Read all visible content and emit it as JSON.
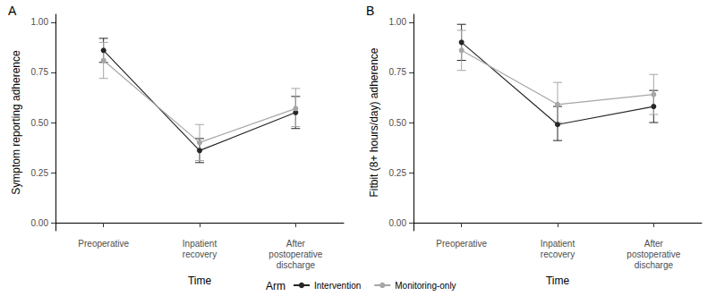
{
  "chart_data": [
    {
      "type": "line",
      "title": "A",
      "x_label": "Time",
      "y_label": "Symptom reporting adherence",
      "categories": [
        "Preoperative",
        "Inpatient\nrecovery",
        "After\npostoperative\ndischarge"
      ],
      "series": [
        {
          "name": "Intervention",
          "color": "#262626",
          "marker": "circle",
          "values": [
            0.86,
            0.36,
            0.55
          ],
          "lower": [
            0.8,
            0.3,
            0.47
          ],
          "upper": [
            0.92,
            0.42,
            0.63
          ]
        },
        {
          "name": "Monitoring-only",
          "color": "#a6a6a6",
          "marker": "circle",
          "values": [
            0.81,
            0.4,
            0.57
          ],
          "lower": [
            0.72,
            0.31,
            0.48
          ],
          "upper": [
            0.9,
            0.49,
            0.67
          ]
        }
      ],
      "ylim": [
        -0.04,
        1.04
      ],
      "yticks": [
        {
          "value": 0,
          "label": "0.00"
        },
        {
          "value": 0.25,
          "label": "0.25"
        },
        {
          "value": 0.5,
          "label": "0.50"
        },
        {
          "value": 0.75,
          "label": "0.75"
        },
        {
          "value": 1,
          "label": "1.00"
        }
      ],
      "grid": false,
      "legend": "bottom"
    },
    {
      "type": "line",
      "title": "B",
      "x_label": "Time",
      "y_label": "Fitbit (8+ hours/day) adherence",
      "categories": [
        "Preoperative",
        "Inpatient\nrecovery",
        "After\npostoperative\ndischarge"
      ],
      "series": [
        {
          "name": "Intervention",
          "color": "#262626",
          "marker": "circle",
          "values": [
            0.9,
            0.49,
            0.58
          ],
          "lower": [
            0.81,
            0.41,
            0.5
          ],
          "upper": [
            0.99,
            0.58,
            0.66
          ]
        },
        {
          "name": "Monitoring-only",
          "color": "#a6a6a6",
          "marker": "circle",
          "values": [
            0.86,
            0.59,
            0.64
          ],
          "lower": [
            0.76,
            0.5,
            0.54
          ],
          "upper": [
            0.96,
            0.7,
            0.74
          ]
        }
      ],
      "ylim": [
        -0.04,
        1.04
      ],
      "yticks": [
        {
          "value": 0,
          "label": "0.00"
        },
        {
          "value": 0.25,
          "label": "0.25"
        },
        {
          "value": 0.5,
          "label": "0.50"
        },
        {
          "value": 0.75,
          "label": "0.75"
        },
        {
          "value": 1,
          "label": "1.00"
        }
      ],
      "grid": false,
      "legend": "bottom"
    }
  ],
  "legend_title": "Arm"
}
